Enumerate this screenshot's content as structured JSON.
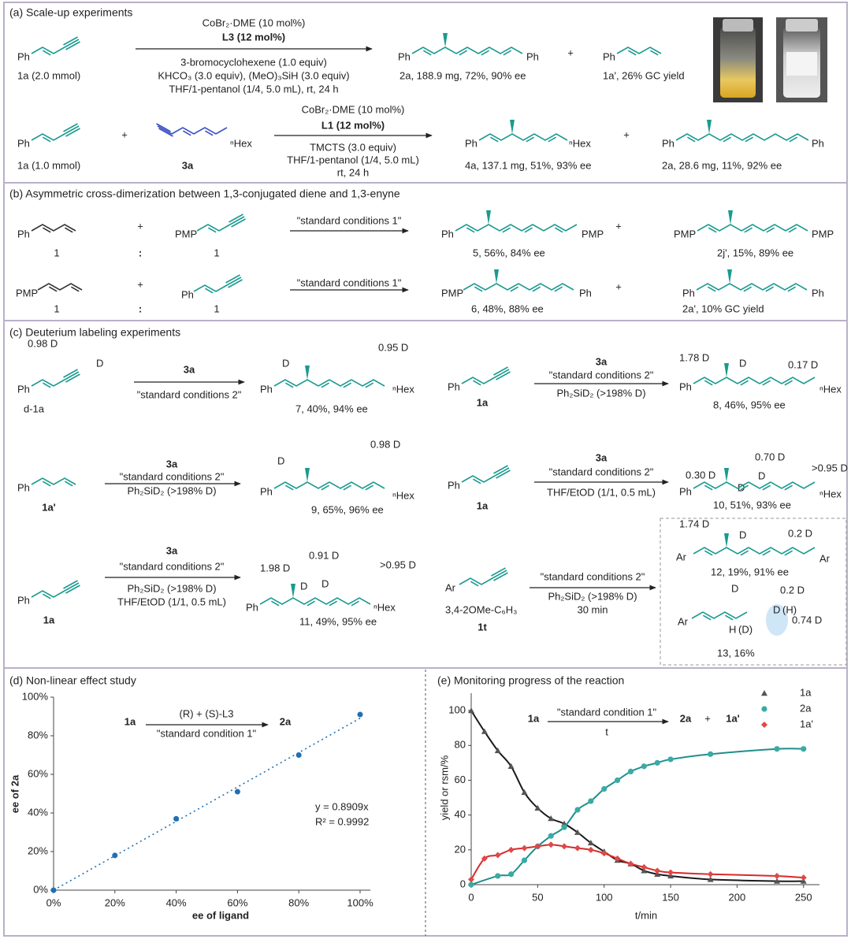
{
  "panels": {
    "a": {
      "title": "(a) Scale-up experiments",
      "rows": [
        [
          "Ph",
          "1a (2.0 mmol)",
          "CoBr₂·DME (10 mol%)",
          "L3 (12 mol%)",
          "3-bromocyclohexene (1.0 equiv)",
          "KHCO₃ (3.0 equiv), (MeO)₃SiH (3.0 equiv)",
          "THF/1-pentanol (1/4, 5.0 mL), rt, 24 h",
          "Ph",
          "Ph",
          "2a, 188.9 mg, 72%, 90% ee",
          "+",
          "Ph",
          "1a', 26% GC yield"
        ],
        [
          "Ph",
          "1a (1.0 mmol)",
          "+",
          "ⁿHex",
          "3a",
          "CoBr₂·DME (10 mol%)",
          "L1 (12 mol%)",
          "TMCTS (3.0 equiv)",
          "THF/1-pentanol (1/4, 5.0 mL)",
          "rt, 24 h",
          "Ph",
          "ⁿHex",
          "4a, 137.1 mg, 51%, 93% ee",
          "+",
          "Ph",
          "Ph",
          "2a, 28.6 mg, 11%, 92% ee"
        ]
      ]
    },
    "b": {
      "title": "(b) Asymmetric cross-dimerization between 1,3-conjugated diene and 1,3-enyne",
      "rows": [
        [
          "Ph",
          "1",
          "+",
          ":",
          "PMP",
          "1",
          "\"standard conditions 1\"",
          "Ph",
          "PMP",
          "5, 56%, 84% ee",
          "+",
          "PMP",
          "PMP",
          "2j', 15%, 89% ee"
        ],
        [
          "PMP",
          "1",
          "+",
          ":",
          "Ph",
          "1",
          "\"standard conditions 1\"",
          "PMP",
          "Ph",
          "6, 48%, 88% ee",
          "+",
          "Ph",
          "Ph",
          "2a', 10% GC yield"
        ]
      ]
    },
    "c": {
      "title": "(c) Deuterium labeling experiments",
      "rows": [
        [
          "0.98 D",
          "D",
          "Ph",
          "d-1a",
          "3a",
          "\"standard conditions 2\"",
          "D",
          "0.95 D",
          "Ph",
          "ⁿHex",
          "7, 40%, 94% ee"
        ],
        [
          "Ph",
          "1a",
          "3a",
          "\"standard conditions 2\"",
          "Ph₂SiD₂ (>198% D)",
          "1.78 D",
          "D",
          "0.17 D",
          "Ph",
          "ⁿHex",
          "8, 46%, 95% ee"
        ],
        [
          "Ph",
          "1a'",
          "3a",
          "\"standard conditions 2\"",
          "Ph₂SiD₂ (>198% D)",
          "D",
          "0.98 D",
          "Ph",
          "ⁿHex",
          "9, 65%, 96% ee"
        ],
        [
          "Ph",
          "1a",
          "3a",
          "\"standard conditions 2\"",
          "THF/EtOD (1/1, 0.5 mL)",
          "0.30 D",
          "0.70 D",
          "D",
          "D",
          ">0.95 D",
          "Ph",
          "ⁿHex",
          "10, 51%, 93% ee"
        ],
        [
          "Ph",
          "1a",
          "3a",
          "\"standard conditions 2\"",
          "Ph₂SiD₂ (>198% D)",
          "THF/EtOD (1/1, 0.5 mL)",
          "1.98 D",
          "0.91 D",
          ">0.95 D",
          "D",
          "D",
          "Ph",
          "ⁿHex",
          "11, 49%, 95% ee"
        ],
        [
          "Ar",
          "3,4-2OMe-C₆H₃",
          "1t",
          "\"standard conditions 2\"",
          "Ph₂SiD₂ (>198% D)",
          "30 min",
          "1.74 D",
          "D",
          "0.2 D",
          "Ar",
          "Ar",
          "12, 19%, 91% ee",
          "D",
          "0.2 D",
          "D",
          "(H)",
          "H",
          "(D)",
          "0.74 D",
          "Ar",
          "13, 16%"
        ]
      ]
    }
  },
  "chart_data": [
    {
      "type": "scatter",
      "title": "(d) Non-linear effect study",
      "x": [
        0,
        20,
        40,
        60,
        80,
        100
      ],
      "values": [
        0,
        18,
        37,
        51,
        70,
        91
      ],
      "color": "#1f6fb5",
      "xlim": [
        0,
        100
      ],
      "ylim": [
        0,
        100
      ],
      "xticks": [
        {
          "value": 0,
          "label": "0%"
        },
        {
          "value": 20,
          "label": "20%"
        },
        {
          "value": 40,
          "label": "40%"
        },
        {
          "value": 60,
          "label": "60%"
        },
        {
          "value": 80,
          "label": "80%"
        },
        {
          "value": 100,
          "label": "100%"
        }
      ],
      "yticks": [
        {
          "value": 0,
          "label": "0%"
        },
        {
          "value": 20,
          "label": "20%"
        },
        {
          "value": 40,
          "label": "40%"
        },
        {
          "value": 60,
          "label": "60%"
        },
        {
          "value": 80,
          "label": "80%"
        },
        {
          "value": 100,
          "label": "100%"
        }
      ],
      "xlabel": "ee of ligand",
      "ylabel": "ee of 2a",
      "grid": false,
      "trendline": {
        "slope": 0.8909,
        "style": "dotted"
      },
      "annotations": [
        "y = 0.8909x",
        "R² = 0.9992"
      ],
      "inset": [
        "1a",
        "(R) + (S)-L3",
        "\"standard condition 1\"",
        "2a"
      ]
    },
    {
      "type": "line",
      "title": "(e) Monitoring progress of the reaction",
      "series": [
        {
          "name": "1a",
          "color": "#555555",
          "line_color": "#1a1a1a",
          "marker": "triangle",
          "x": [
            0,
            10,
            20,
            30,
            40,
            50,
            60,
            70,
            80,
            90,
            100,
            110,
            120,
            130,
            140,
            150,
            180,
            230,
            250
          ],
          "values": [
            100,
            88,
            77,
            68,
            53,
            44,
            38,
            35,
            30,
            24,
            19,
            14,
            12,
            8,
            6,
            5,
            3,
            2,
            2
          ]
        },
        {
          "name": "2a",
          "color": "#3aaaa5",
          "line_color": "#1f8f8a",
          "marker": "circle",
          "x": [
            0,
            20,
            30,
            40,
            50,
            60,
            70,
            80,
            90,
            100,
            110,
            120,
            130,
            140,
            150,
            180,
            230,
            250
          ],
          "values": [
            0,
            5,
            6,
            14,
            22,
            28,
            33,
            43,
            48,
            55,
            60,
            65,
            68,
            70,
            72,
            75,
            78,
            78
          ]
        },
        {
          "name": "1a'",
          "color": "#e04848",
          "line_color": "#d62b2b",
          "marker": "diamond",
          "x": [
            0,
            10,
            20,
            30,
            40,
            50,
            60,
            70,
            80,
            90,
            100,
            110,
            120,
            130,
            140,
            150,
            180,
            230,
            250
          ],
          "values": [
            3,
            15,
            17,
            20,
            21,
            22,
            23,
            22,
            21,
            20,
            18,
            15,
            12,
            10,
            8,
            7,
            6,
            5,
            4
          ]
        }
      ],
      "xlim": [
        0,
        262
      ],
      "ylim": [
        0,
        110
      ],
      "xticks": [
        0,
        50,
        100,
        150,
        200,
        250
      ],
      "yticks": [
        0,
        20,
        40,
        60,
        80,
        100
      ],
      "xlabel": "t/min",
      "ylabel": "yield or rsm/%",
      "legend": "upper right",
      "grid": false,
      "inset": [
        "1a",
        "\"standard condition 1\"",
        "t",
        "2a",
        "+",
        "1a'"
      ]
    }
  ]
}
